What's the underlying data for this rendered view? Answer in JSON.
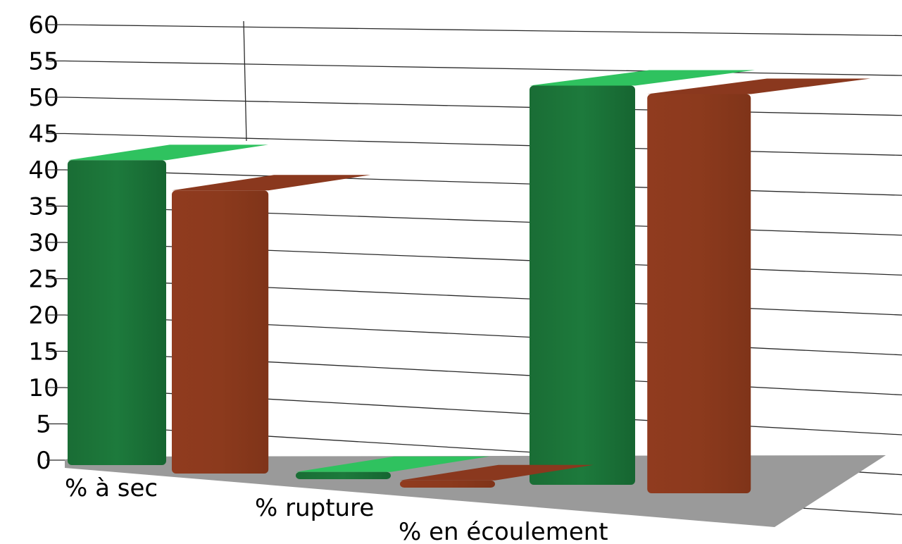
{
  "chart_data": {
    "type": "bar",
    "title": "",
    "xlabel": "",
    "ylabel": "",
    "ylim": [
      0,
      60
    ],
    "y_ticks": [
      0,
      5,
      10,
      15,
      20,
      25,
      30,
      35,
      40,
      45,
      50,
      55,
      60
    ],
    "grid": true,
    "three_d": true,
    "legend": "none",
    "categories": [
      "% à sec",
      "% rupture",
      "% en écoulement"
    ],
    "series": [
      {
        "color": "#1e7a3c",
        "top_color": "#2fc25f",
        "values": [
          42,
          1,
          55
        ]
      },
      {
        "color": "#ef6230",
        "top_color": "#8a381e",
        "values": [
          39,
          1,
          55
        ]
      }
    ]
  }
}
